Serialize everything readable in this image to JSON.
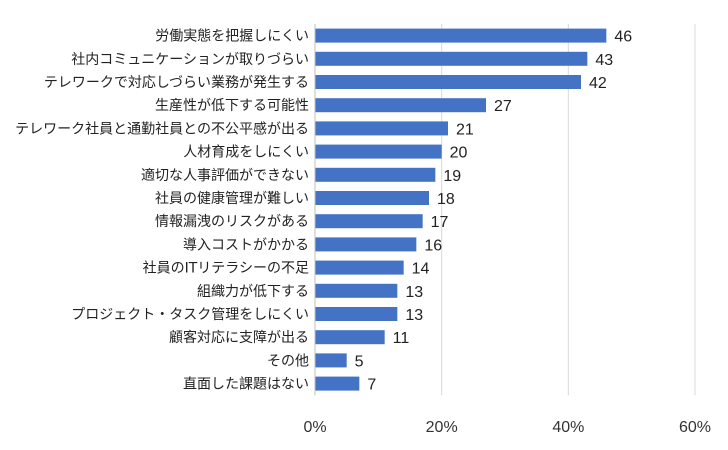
{
  "chart_data": {
    "type": "bar",
    "orientation": "horizontal",
    "title": "",
    "xlabel": "",
    "ylabel": "",
    "categories": [
      "労働実態を把握しにくい",
      "社内コミュニケーションが取りづらい",
      "テレワークで対応しづらい業務が発生する",
      "生産性が低下する可能性",
      "テレワーク社員と通勤社員との不公平感が出る",
      "人材育成をしにくい",
      "適切な人事評価ができない",
      "社員の健康管理が難しい",
      "情報漏洩のリスクがある",
      "導入コストがかかる",
      "社員のITリテラシーの不足",
      "組織力が低下する",
      "プロジェクト・タスク管理をしにくい",
      "顧客対応に支障が出る",
      "その他",
      "直面した課題はない"
    ],
    "values": [
      46,
      43,
      42,
      27,
      21,
      20,
      19,
      18,
      17,
      16,
      14,
      13,
      13,
      11,
      5,
      7
    ],
    "xlim": [
      0,
      60
    ],
    "x_ticks": [
      "0%",
      "20%",
      "40%",
      "60%"
    ],
    "x_tick_values": [
      0,
      20,
      40,
      60
    ],
    "grid": true,
    "legend": "none",
    "bar_color": "#4472c4"
  }
}
